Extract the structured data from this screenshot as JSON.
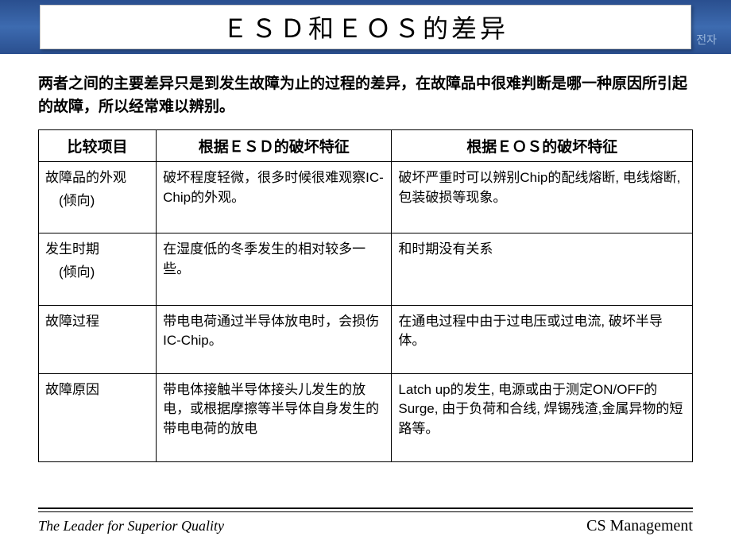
{
  "title": "ＥＳＤ和ＥＯＳ的差异",
  "corner": "전자",
  "intro": "两者之间的主要差异只是到发生故障为止的过程的差异，在故障品中很难判断是哪一种原因所引起的故障，所以经常难以辨别。",
  "table": {
    "headers": [
      "比较项目",
      "根据ＥＳＤ的破坏特征",
      "根据ＥＯＳ的破坏特征"
    ],
    "rows": [
      {
        "label_main": "故障品的外观",
        "label_sub": "(倾向)",
        "esd": "破坏程度轻微，很多时候很难观察IC-Chip的外观。",
        "eos": "破坏严重时可以辨别Chip的配线熔断, 电线熔断,包装破损等现象。"
      },
      {
        "label_main": "发生时期",
        "label_sub": "(倾向)",
        "esd": "在湿度低的冬季发生的相对较多一些。",
        "eos": "和时期没有关系"
      },
      {
        "label_main": "故障过程",
        "label_sub": "",
        "esd": "带电电荷通过半导体放电时，会损伤IC-Chip。",
        "eos": "在通电过程中由于过电压或过电流, 破坏半导体。"
      },
      {
        "label_main": "故障原因",
        "label_sub": "",
        "esd": "带电体接触半导体接头儿发生的放电，或根据摩擦等半导体自身发生的带电电荷的放电",
        "eos": "Latch up的发生, 电源或由于测定ON/OFF的Surge, 由于负荷和合线, 焊锡残渣,金属异物的短路等。"
      }
    ]
  },
  "footer": {
    "left": "The Leader for Superior Quality",
    "right": "CS Management"
  }
}
